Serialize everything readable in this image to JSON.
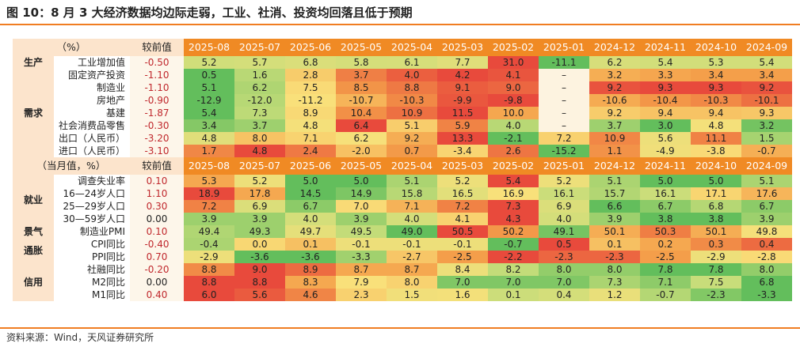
{
  "title": "图 10：8 月 3 大经济数据均边际走弱，工业、社消、投资均回落且低于预期",
  "source": "资料来源：Wind，天风证券研究所",
  "table1": {
    "corner": "（%）",
    "prev_header": "较前值",
    "months": [
      "2025-08",
      "2025-07",
      "2025-06",
      "2025-05",
      "2025-04",
      "2025-03",
      "2025-02",
      "2025-01",
      "2024-12",
      "2024-11",
      "2024-10",
      "2024-09"
    ],
    "rows": [
      {
        "group": "生产",
        "label": "工业增加值",
        "prev": "-0.50",
        "values": [
          "5.2",
          "5.7",
          "6.8",
          "5.8",
          "6.1",
          "7.7",
          "31.0",
          "-11.1",
          "6.2",
          "5.4",
          "5.3",
          "5.4"
        ]
      },
      {
        "group": "需求",
        "label": "固定资产投资",
        "prev": "-1.10",
        "values": [
          "0.5",
          "1.6",
          "2.8",
          "3.7",
          "4.0",
          "4.2",
          "4.1",
          "–",
          "3.2",
          "3.3",
          "3.4",
          "3.4"
        ]
      },
      {
        "group": "",
        "label": "制造业",
        "prev": "-1.10",
        "values": [
          "5.1",
          "6.2",
          "7.5",
          "8.5",
          "8.8",
          "9.1",
          "9.0",
          "–",
          "9.2",
          "9.3",
          "9.3",
          "9.2"
        ]
      },
      {
        "group": "",
        "label": "房地产",
        "prev": "-0.90",
        "values": [
          "-12.9",
          "-12.0",
          "-11.2",
          "-10.7",
          "-10.3",
          "-9.9",
          "-9.8",
          "–",
          "-10.6",
          "-10.4",
          "-10.3",
          "-10.1"
        ]
      },
      {
        "group": "",
        "label": "基建",
        "prev": "-1.87",
        "values": [
          "5.4",
          "7.3",
          "8.9",
          "10.4",
          "10.9",
          "11.5",
          "10.0",
          "–",
          "9.2",
          "9.4",
          "9.4",
          "9.3"
        ]
      },
      {
        "group": "",
        "label": "社会消费品零售",
        "prev": "-0.30",
        "values": [
          "3.4",
          "3.7",
          "4.8",
          "6.4",
          "5.1",
          "5.9",
          "4.0",
          "–",
          "3.7",
          "3.0",
          "4.8",
          "3.2"
        ]
      },
      {
        "group": "",
        "label": "出口（人民币）",
        "prev": "-3.20",
        "values": [
          "4.8",
          "8.0",
          "7.1",
          "6.2",
          "9.2",
          "13.3",
          "-2.1",
          "7.2",
          "10.9",
          "5.6",
          "11.1",
          "1.5"
        ]
      },
      {
        "group": "",
        "label": "进口（人民币）",
        "prev": "-3.10",
        "values": [
          "1.7",
          "4.8",
          "2.4",
          "-2.0",
          "0.7",
          "-3.4",
          "2.6",
          "-15.2",
          "1.1",
          "-4.9",
          "-3.8",
          "-0.7"
        ]
      }
    ]
  },
  "table2": {
    "corner": "（当月值，%）",
    "prev_header": "较前值",
    "months": [
      "2025-08",
      "2025-07",
      "2025-06",
      "2025-05",
      "2025-04",
      "2025-03",
      "2025-02",
      "2025-01",
      "2024-12",
      "2024-11",
      "2024-10",
      "2024-09"
    ],
    "rows": [
      {
        "group": "就业",
        "label": "调查失业率",
        "prev": "0.10",
        "values": [
          "5.3",
          "5.2",
          "5.0",
          "5.0",
          "5.1",
          "5.2",
          "5.4",
          "5.2",
          "5.1",
          "5.0",
          "5.0",
          "5.1"
        ]
      },
      {
        "group": "",
        "label": "16—24岁人口",
        "prev": "1.10",
        "values": [
          "18.9",
          "17.8",
          "14.5",
          "14.9",
          "15.8",
          "16.5",
          "16.9",
          "16.1",
          "15.7",
          "16.1",
          "17.1",
          "17.6"
        ]
      },
      {
        "group": "",
        "label": "25—29岁人口",
        "prev": "0.30",
        "values": [
          "7.2",
          "6.9",
          "6.7",
          "7.0",
          "7.1",
          "7.2",
          "7.3",
          "6.9",
          "6.6",
          "6.7",
          "6.8",
          "6.7"
        ]
      },
      {
        "group": "",
        "label": "30—59岁人口",
        "prev": "0.00",
        "values": [
          "3.9",
          "3.9",
          "4.0",
          "3.9",
          "4.0",
          "4.1",
          "4.3",
          "4.0",
          "3.9",
          "3.8",
          "3.8",
          "3.9"
        ]
      },
      {
        "group": "景气",
        "label": "制造业PMI",
        "prev": "0.10",
        "values": [
          "49.4",
          "49.3",
          "49.7",
          "49.5",
          "49.0",
          "50.5",
          "50.2",
          "49.1",
          "50.1",
          "50.3",
          "50.1",
          "49.8"
        ]
      },
      {
        "group": "通胀",
        "label": "CPI同比",
        "prev": "-0.40",
        "values": [
          "-0.4",
          "0.0",
          "0.1",
          "-0.1",
          "-0.1",
          "-0.1",
          "-0.7",
          "0.5",
          "0.1",
          "0.2",
          "0.3",
          "0.4"
        ]
      },
      {
        "group": "",
        "label": "PPI同比",
        "prev": "0.70",
        "values": [
          "-2.9",
          "-3.6",
          "-3.6",
          "-3.3",
          "-2.7",
          "-2.5",
          "-2.2",
          "-2.3",
          "-2.3",
          "-2.5",
          "-2.9",
          "-2.8"
        ]
      },
      {
        "group": "信用",
        "label": "社融同比",
        "prev": "-0.20",
        "values": [
          "8.8",
          "9.0",
          "8.9",
          "8.7",
          "8.7",
          "8.4",
          "8.2",
          "8.0",
          "8.0",
          "7.8",
          "7.8",
          "8.0"
        ]
      },
      {
        "group": "",
        "label": "M2同比",
        "prev": "0.00",
        "values": [
          "8.8",
          "8.8",
          "8.3",
          "7.9",
          "8.0",
          "7.0",
          "7.0",
          "7.0",
          "7.3",
          "7.1",
          "7.5",
          "6.8"
        ]
      },
      {
        "group": "",
        "label": "M1同比",
        "prev": "0.40",
        "values": [
          "6.0",
          "5.6",
          "4.6",
          "2.3",
          "1.5",
          "1.6",
          "0.1",
          "0.4",
          "1.2",
          "-0.7",
          "-2.3",
          "-3.3"
        ]
      }
    ]
  },
  "colors": {
    "accent": "#f07d22",
    "header_bg": "#f08a24",
    "red": "#e84a3c",
    "orange": "#f4a04a",
    "yellow": "#f9e07a",
    "lightgreen": "#c8dd7a",
    "green": "#63be5c"
  }
}
